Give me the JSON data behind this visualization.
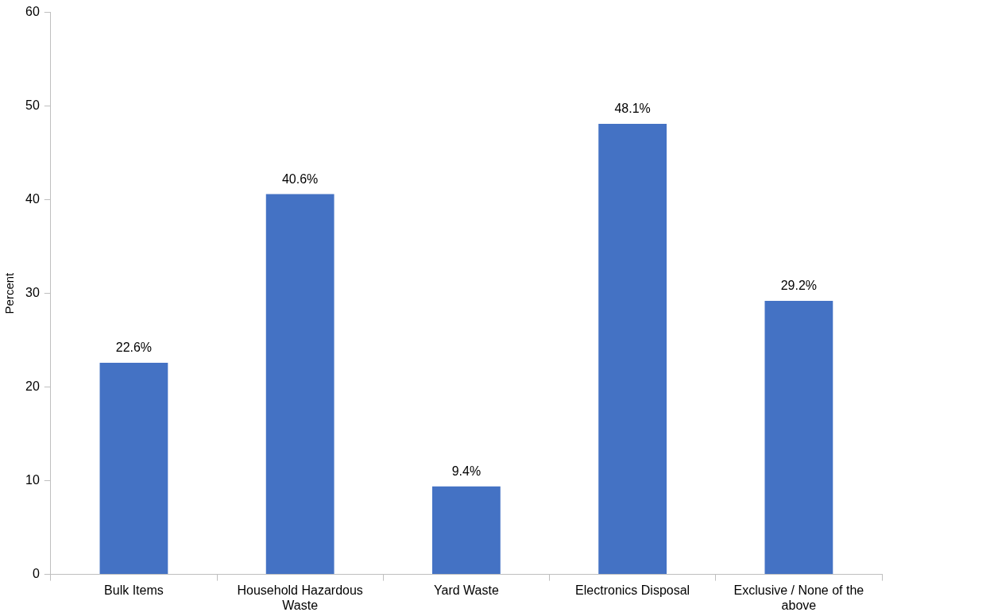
{
  "chart_data": {
    "type": "bar",
    "ylabel": "Percent",
    "categories": [
      "Bulk Items",
      "Household Hazardous Waste",
      "Yard Waste",
      "Electronics Disposal",
      "Exclusive / None of the above"
    ],
    "values": [
      22.6,
      40.6,
      9.4,
      48.1,
      29.2
    ],
    "value_labels": [
      "22.6%",
      "40.6%",
      "9.4%",
      "48.1%",
      "29.2%"
    ],
    "color": "#4472c4",
    "ylim": [
      0,
      60
    ],
    "yticks": [
      0,
      10,
      20,
      30,
      40,
      50,
      60
    ],
    "grid": false,
    "legend": false
  }
}
